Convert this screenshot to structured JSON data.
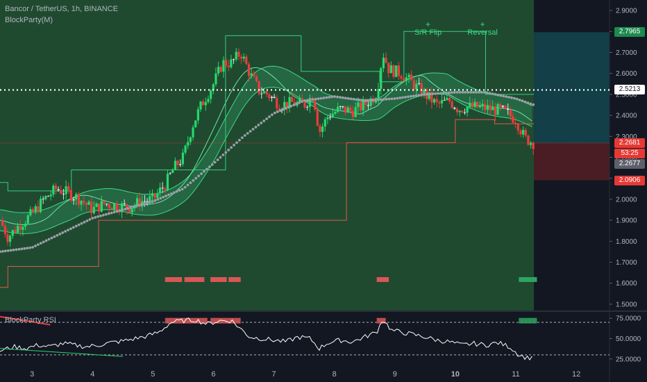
{
  "header": {
    "symbol_line": "Bancor / TetherUS, 1h, BINANCE",
    "indicator_line": "BlockParty(M)"
  },
  "rsi": {
    "title": "BlockParty RSI",
    "ticks": [
      "75.0000",
      "50.0000",
      "25.0000"
    ],
    "overbought": 70,
    "oversold": 30
  },
  "annotations": [
    {
      "plus": "+",
      "text": "S/R Flip"
    },
    {
      "plus": "+",
      "text": "Reversal"
    }
  ],
  "price_tags": [
    {
      "label": "2.7965",
      "color": "#1e8a4f",
      "text_color": "#ffffff"
    },
    {
      "label": "2.5213",
      "color": "#ffffff",
      "text_color": "#131722"
    },
    {
      "label": "2.2681",
      "color": "#e53935",
      "text_color": "#ffffff"
    },
    {
      "label": "53:25",
      "color": "#e53935",
      "text_color": "#ffffff"
    },
    {
      "label": "2.2677",
      "color": "#5d606b",
      "text_color": "#ffffff"
    },
    {
      "label": "2.0906",
      "color": "#e53935",
      "text_color": "#ffffff"
    }
  ],
  "colors": {
    "background": "#131722",
    "zone": "#1f4a30",
    "up_candle": "#26d96b",
    "down_candle": "#ef3b3b",
    "doji_candle": "#e0e3eb",
    "support_line": "#e05a4b",
    "resistance_line": "#35d07f",
    "dots": "#9aa0a6"
  },
  "chart_data": {
    "type": "candlestick",
    "title": "Bancor / TetherUS, 1h, BINANCE",
    "y_ticks": [
      "2.9000",
      "2.8000",
      "2.7000",
      "2.6000",
      "2.5000",
      "2.4000",
      "2.3000",
      "2.2000",
      "2.1000",
      "2.0000",
      "1.9000",
      "1.8000",
      "1.7000",
      "1.6000",
      "1.5000"
    ],
    "ylim": [
      1.47,
      2.95
    ],
    "x_ticks": [
      "3",
      "4",
      "5",
      "6",
      "7",
      "8",
      "9",
      "10",
      "11",
      "12"
    ],
    "x_tick_days": [
      3,
      4,
      5,
      6,
      7,
      8,
      9,
      10,
      11,
      12
    ],
    "xlim": [
      2.47,
      12.55
    ],
    "last_bar_day": 11.3,
    "current_price": 2.2681,
    "dotted_level": 2.5213,
    "target_zone": [
      2.2681,
      2.7965
    ],
    "stop_zone": [
      2.0906,
      2.2681
    ],
    "close_path": [
      [
        2.47,
        1.9
      ],
      [
        2.6,
        1.82
      ],
      [
        2.8,
        1.88
      ],
      [
        3.0,
        1.93
      ],
      [
        3.2,
        2.0
      ],
      [
        3.4,
        2.05
      ],
      [
        3.6,
        2.03
      ],
      [
        3.8,
        2.0
      ],
      [
        4.0,
        1.95
      ],
      [
        4.2,
        1.98
      ],
      [
        4.4,
        1.97
      ],
      [
        4.6,
        1.96
      ],
      [
        4.8,
        1.99
      ],
      [
        5.0,
        2.0
      ],
      [
        5.2,
        2.07
      ],
      [
        5.35,
        2.15
      ],
      [
        5.5,
        2.2
      ],
      [
        5.65,
        2.35
      ],
      [
        5.8,
        2.45
      ],
      [
        6.0,
        2.55
      ],
      [
        6.15,
        2.65
      ],
      [
        6.3,
        2.65
      ],
      [
        6.45,
        2.7
      ],
      [
        6.6,
        2.6
      ],
      [
        6.75,
        2.52
      ],
      [
        6.9,
        2.5
      ],
      [
        7.1,
        2.45
      ],
      [
        7.3,
        2.46
      ],
      [
        7.5,
        2.45
      ],
      [
        7.65,
        2.5
      ],
      [
        7.75,
        2.32
      ],
      [
        7.9,
        2.4
      ],
      [
        8.1,
        2.43
      ],
      [
        8.3,
        2.42
      ],
      [
        8.5,
        2.45
      ],
      [
        8.7,
        2.5
      ],
      [
        8.8,
        2.7
      ],
      [
        8.9,
        2.62
      ],
      [
        9.1,
        2.6
      ],
      [
        9.3,
        2.55
      ],
      [
        9.5,
        2.5
      ],
      [
        9.7,
        2.45
      ],
      [
        9.9,
        2.47
      ],
      [
        10.05,
        2.43
      ],
      [
        10.2,
        2.44
      ],
      [
        10.4,
        2.44
      ],
      [
        10.6,
        2.43
      ],
      [
        10.8,
        2.42
      ],
      [
        11.0,
        2.38
      ],
      [
        11.15,
        2.29
      ],
      [
        11.3,
        2.268
      ]
    ],
    "dots_path": [
      [
        2.47,
        1.75
      ],
      [
        3.0,
        1.77
      ],
      [
        3.5,
        1.84
      ],
      [
        4.0,
        1.91
      ],
      [
        4.5,
        1.95
      ],
      [
        5.0,
        1.99
      ],
      [
        5.5,
        2.05
      ],
      [
        6.0,
        2.17
      ],
      [
        6.5,
        2.3
      ],
      [
        7.0,
        2.41
      ],
      [
        7.5,
        2.47
      ],
      [
        8.0,
        2.49
      ],
      [
        8.5,
        2.47
      ],
      [
        9.0,
        2.48
      ],
      [
        9.5,
        2.5
      ],
      [
        10.0,
        2.51
      ],
      [
        10.5,
        2.51
      ],
      [
        11.0,
        2.48
      ],
      [
        11.3,
        2.45
      ]
    ],
    "support_steps": [
      [
        2.47,
        1.58
      ],
      [
        2.6,
        1.58
      ],
      [
        2.6,
        1.68
      ],
      [
        4.1,
        1.68
      ],
      [
        4.1,
        1.9
      ],
      [
        6.35,
        1.9
      ],
      [
        6.35,
        1.9
      ],
      [
        8.2,
        1.9
      ],
      [
        8.2,
        2.27
      ],
      [
        10.0,
        2.27
      ],
      [
        10.0,
        2.38
      ],
      [
        10.65,
        2.38
      ],
      [
        10.65,
        2.36
      ],
      [
        11.3,
        2.36
      ]
    ],
    "resistance_steps": [
      [
        2.47,
        2.08
      ],
      [
        2.6,
        2.08
      ],
      [
        2.6,
        2.04
      ],
      [
        3.65,
        2.04
      ],
      [
        3.65,
        2.14
      ],
      [
        6.2,
        2.14
      ],
      [
        6.2,
        2.78
      ],
      [
        7.45,
        2.78
      ],
      [
        7.45,
        2.61
      ],
      [
        8.75,
        2.61
      ],
      [
        8.75,
        2.56
      ],
      [
        9.15,
        2.56
      ],
      [
        9.15,
        2.8
      ],
      [
        10.5,
        2.8
      ],
      [
        10.5,
        2.5
      ],
      [
        11.3,
        2.5
      ]
    ],
    "signal_markers": [
      {
        "from": 5.2,
        "to": 5.48,
        "color": "#d95757"
      },
      {
        "from": 5.52,
        "to": 5.85,
        "color": "#d95757"
      },
      {
        "from": 5.95,
        "to": 6.22,
        "color": "#d95757"
      },
      {
        "from": 6.25,
        "to": 6.45,
        "color": "#d95757"
      },
      {
        "from": 8.7,
        "to": 8.9,
        "color": "#d95757"
      },
      {
        "from": 11.05,
        "to": 11.35,
        "color": "#2ea35f"
      }
    ],
    "annotation_days": [
      9.55,
      10.45
    ],
    "annotation_levels": [
      2.82,
      2.82
    ],
    "rsi_values": [
      [
        2.47,
        35
      ],
      [
        2.7,
        40
      ],
      [
        2.9,
        38
      ],
      [
        3.1,
        42
      ],
      [
        3.3,
        40
      ],
      [
        3.5,
        44
      ],
      [
        3.7,
        42
      ],
      [
        3.9,
        40
      ],
      [
        4.1,
        42
      ],
      [
        4.3,
        45
      ],
      [
        4.5,
        47
      ],
      [
        4.7,
        50
      ],
      [
        4.9,
        53
      ],
      [
        5.1,
        58
      ],
      [
        5.3,
        70
      ],
      [
        5.5,
        72
      ],
      [
        5.7,
        73
      ],
      [
        5.9,
        68
      ],
      [
        6.1,
        72
      ],
      [
        6.3,
        72
      ],
      [
        6.45,
        62
      ],
      [
        6.6,
        52
      ],
      [
        6.8,
        50
      ],
      [
        7.0,
        48
      ],
      [
        7.2,
        46
      ],
      [
        7.4,
        52
      ],
      [
        7.6,
        50
      ],
      [
        7.75,
        38
      ],
      [
        7.9,
        45
      ],
      [
        8.1,
        48
      ],
      [
        8.3,
        46
      ],
      [
        8.5,
        52
      ],
      [
        8.7,
        58
      ],
      [
        8.8,
        74
      ],
      [
        8.95,
        60
      ],
      [
        9.1,
        58
      ],
      [
        9.3,
        55
      ],
      [
        9.5,
        52
      ],
      [
        9.7,
        48
      ],
      [
        9.9,
        46
      ],
      [
        10.1,
        42
      ],
      [
        10.3,
        44
      ],
      [
        10.5,
        42
      ],
      [
        10.7,
        45
      ],
      [
        10.9,
        40
      ],
      [
        11.05,
        30
      ],
      [
        11.2,
        26
      ],
      [
        11.3,
        28
      ]
    ],
    "rsi_trend_red": [
      [
        2.47,
        77
      ],
      [
        3.3,
        67
      ]
    ],
    "rsi_trend_green": [
      [
        2.47,
        38
      ],
      [
        4.5,
        28
      ]
    ],
    "rsi_markers": [
      {
        "from": 5.2,
        "to": 5.9,
        "color": "#d95757"
      },
      {
        "from": 5.95,
        "to": 6.45,
        "color": "#d95757"
      },
      {
        "from": 8.7,
        "to": 8.85,
        "color": "#d95757"
      },
      {
        "from": 11.05,
        "to": 11.35,
        "color": "#2ea35f"
      }
    ],
    "rsi_ylim": [
      18,
      82
    ]
  }
}
